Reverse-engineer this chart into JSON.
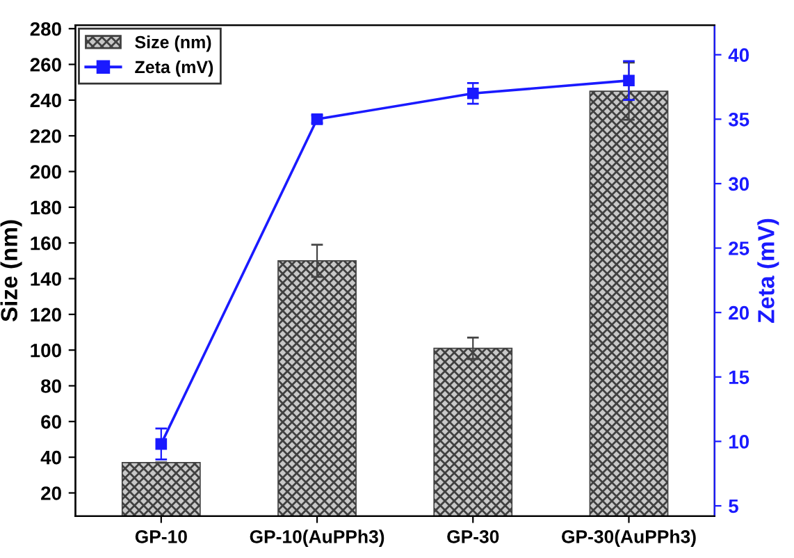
{
  "chart_data": {
    "type": "bar",
    "categories": [
      "GP-10",
      "GP-10(AuPPh3)",
      "GP-30",
      "GP-30(AuPPh3)"
    ],
    "series": [
      {
        "name": "Size (nm)",
        "color": "#404040",
        "values": [
          37,
          150,
          101,
          245
        ],
        "errors": [
          null,
          9,
          6,
          16
        ]
      },
      {
        "name": "Zeta (mV)",
        "type": "line",
        "axis": "y2",
        "color": "#1a1aff",
        "values": [
          9.8,
          35,
          37,
          38
        ],
        "errors": [
          1.2,
          0.3,
          0.8,
          1.5
        ]
      }
    ],
    "ylabel": "Size (nm)",
    "y2label": "Zeta (mV)",
    "ylim": [
      7,
      282
    ],
    "yticks": [
      20,
      40,
      60,
      80,
      100,
      120,
      140,
      160,
      180,
      200,
      220,
      240,
      260,
      280
    ],
    "y2lim": [
      4.2,
      42.3
    ],
    "y2ticks": [
      5,
      10,
      15,
      20,
      25,
      30,
      35,
      40
    ],
    "marker": "square",
    "line_style": "solid",
    "legend": "top left",
    "grid": false
  }
}
